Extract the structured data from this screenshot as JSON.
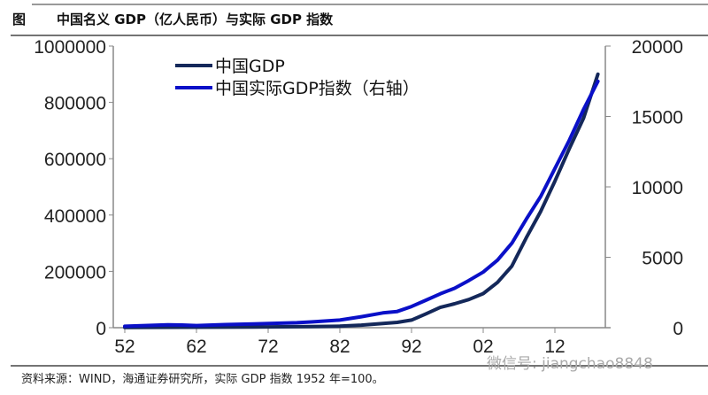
{
  "header": {
    "figure_label": "图",
    "title": "中国名义 GDP（亿人民币）与实际 GDP 指数"
  },
  "footer": {
    "source": "资料来源：WIND，海通证券研究所，实际 GDP 指数 1952 年=100。",
    "watermark": "微信号: jiangchao8848"
  },
  "colors": {
    "nominal": "#14285a",
    "real": "#0a10c8",
    "axis": "#888888"
  },
  "chart_data": {
    "type": "line",
    "title": "中国名义 GDP（亿人民币）与实际 GDP 指数",
    "xlim": [
      1952,
      2020
    ],
    "x_ticks": [
      1952,
      1962,
      1972,
      1982,
      1992,
      2002,
      2012
    ],
    "x_tick_labels": [
      "52",
      "62",
      "72",
      "82",
      "92",
      "02",
      "12"
    ],
    "ylim_left": [
      0,
      1000000
    ],
    "y_ticks_left": [
      "0",
      "200000",
      "400000",
      "600000",
      "800000",
      "1000000"
    ],
    "ylim_right": [
      0,
      20000
    ],
    "y_ticks_right": [
      "0",
      "5000",
      "10000",
      "15000",
      "20000"
    ],
    "grid": false,
    "legend_position": "top-left",
    "series": [
      {
        "name": "中国GDP",
        "axis": "left",
        "color": "#14285a",
        "x": [
          1952,
          1960,
          1970,
          1978,
          1982,
          1985,
          1988,
          1990,
          1992,
          1994,
          1996,
          1998,
          2000,
          2002,
          2004,
          2006,
          2008,
          2010,
          2012,
          2014,
          2016,
          2018
        ],
        "y": [
          700,
          1500,
          2300,
          3700,
          5300,
          9000,
          15000,
          19000,
          27000,
          49000,
          72000,
          85000,
          100000,
          121000,
          161000,
          219000,
          319000,
          412000,
          520000,
          635000,
          744000,
          900000
        ]
      },
      {
        "name": "中国实际GDP指数（右轴）",
        "axis": "right",
        "color": "#0a10c8",
        "x": [
          1952,
          1958,
          1960,
          1962,
          1966,
          1970,
          1976,
          1978,
          1982,
          1985,
          1988,
          1990,
          1992,
          1994,
          1996,
          1998,
          2000,
          2002,
          2004,
          2006,
          2008,
          2010,
          2012,
          2014,
          2016,
          2018
        ],
        "y": [
          100,
          200,
          190,
          150,
          220,
          270,
          350,
          410,
          540,
          780,
          1050,
          1150,
          1500,
          1950,
          2400,
          2800,
          3350,
          3950,
          4800,
          6000,
          7700,
          9300,
          11300,
          13300,
          15500,
          17500
        ]
      }
    ]
  }
}
